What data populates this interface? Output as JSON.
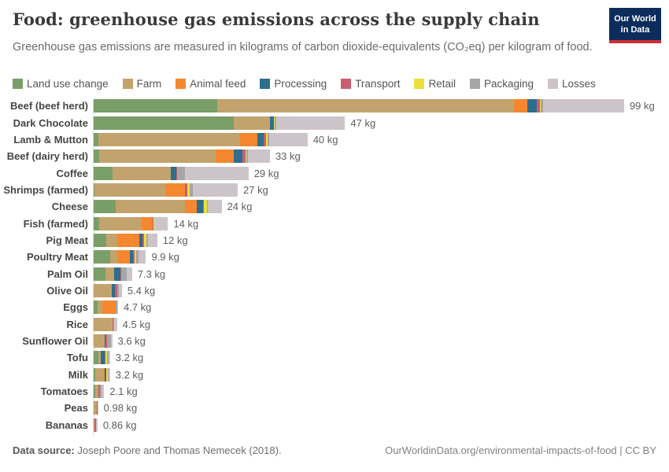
{
  "header": {
    "title": "Food: greenhouse gas emissions across the supply chain",
    "subtitle": "Greenhouse gas emissions are measured in kilograms of carbon dioxide-equivalents (CO₂eq) per kilogram of food.",
    "logo_line1": "Our World",
    "logo_line2": "in Data"
  },
  "chart_data": {
    "type": "bar",
    "orientation": "horizontal",
    "unit": "kg CO₂eq per kg of food",
    "xlim": [
      0,
      99
    ],
    "grid": false,
    "legend_position": "top",
    "stages": [
      {
        "name": "Land use change",
        "color": "#7a9e68"
      },
      {
        "name": "Farm",
        "color": "#c3a36c"
      },
      {
        "name": "Animal feed",
        "color": "#f5872e"
      },
      {
        "name": "Processing",
        "color": "#2e6e8d"
      },
      {
        "name": "Transport",
        "color": "#ca5d6e"
      },
      {
        "name": "Retail",
        "color": "#eae03c"
      },
      {
        "name": "Packaging",
        "color": "#a6a6a6"
      },
      {
        "name": "Losses",
        "color": "#cdc4c9"
      }
    ],
    "rows": [
      {
        "label": "Beef (beef herd)",
        "total": 99,
        "total_label": "99 kg",
        "values": [
          23.2,
          55.3,
          2.4,
          1.8,
          0.6,
          0.2,
          0.4,
          15.1
        ]
      },
      {
        "label": "Dark Chocolate",
        "total": 47,
        "total_label": "47 kg",
        "values": [
          26.3,
          6.7,
          0,
          0.7,
          0.1,
          0.05,
          0.4,
          12.75
        ]
      },
      {
        "label": "Lamb & Mutton",
        "total": 40,
        "total_label": "40 kg",
        "values": [
          1.0,
          26.5,
          3.2,
          1.1,
          0.5,
          0.2,
          0.3,
          7.2
        ]
      },
      {
        "label": "Beef (dairy herd)",
        "total": 33,
        "total_label": "33 kg",
        "values": [
          1.1,
          21.8,
          3.4,
          1.6,
          0.5,
          0.2,
          0.3,
          4.1
        ]
      },
      {
        "label": "Coffee",
        "total": 29,
        "total_label": "29 kg",
        "values": [
          3.7,
          10.8,
          0,
          1.1,
          0.1,
          0.05,
          1.4,
          11.85
        ]
      },
      {
        "label": "Shrimps (farmed)",
        "total": 27,
        "total_label": "27 kg",
        "values": [
          0.3,
          13.2,
          3.7,
          0,
          0.4,
          0.5,
          0.6,
          8.3
        ]
      },
      {
        "label": "Cheese",
        "total": 24,
        "total_label": "24 kg",
        "values": [
          4.3,
          12.9,
          2.2,
          1.2,
          0.1,
          0.5,
          0.2,
          2.6
        ]
      },
      {
        "label": "Fish (farmed)",
        "total": 14,
        "total_label": "14 kg",
        "values": [
          1.1,
          8.0,
          2.0,
          0.05,
          0.2,
          0.1,
          0.05,
          2.5
        ]
      },
      {
        "label": "Pig Meat",
        "total": 12,
        "total_label": "12 kg",
        "values": [
          2.5,
          2.1,
          4.1,
          0.6,
          0.3,
          0.4,
          0.3,
          1.7
        ]
      },
      {
        "label": "Poultry Meat",
        "total": 9.9,
        "total_label": "9.9 kg",
        "values": [
          3.2,
          1.3,
          2.4,
          0.6,
          0.3,
          0.3,
          0.4,
          1.4
        ]
      },
      {
        "label": "Palm Oil",
        "total": 7.3,
        "total_label": "7.3 kg",
        "values": [
          2.4,
          1.5,
          0,
          1.2,
          0.2,
          0,
          1.0,
          1.0
        ]
      },
      {
        "label": "Olive Oil",
        "total": 5.4,
        "total_label": "5.4 kg",
        "values": [
          0.2,
          3.3,
          0,
          0.6,
          0.45,
          0.05,
          0.3,
          0.5
        ]
      },
      {
        "label": "Eggs",
        "total": 4.7,
        "total_label": "4.7 kg",
        "values": [
          0.9,
          0.8,
          2.5,
          0,
          0.1,
          0,
          0.2,
          0.2
        ]
      },
      {
        "label": "Rice",
        "total": 4.5,
        "total_label": "4.5 kg",
        "values": [
          0,
          3.6,
          0,
          0.1,
          0.1,
          0,
          0.1,
          0.6
        ]
      },
      {
        "label": "Sunflower Oil",
        "total": 3.6,
        "total_label": "3.6 kg",
        "values": [
          0.1,
          2.1,
          0,
          0.2,
          0.2,
          0,
          0.8,
          0.2
        ]
      },
      {
        "label": "Tofu",
        "total": 3.2,
        "total_label": "3.2 kg",
        "values": [
          1.0,
          0.4,
          0,
          0.8,
          0.2,
          0.3,
          0.2,
          0.3
        ]
      },
      {
        "label": "Milk",
        "total": 3.2,
        "total_label": "3.2 kg",
        "values": [
          0.5,
          1.5,
          0.25,
          0.2,
          0.1,
          0.25,
          0.1,
          0.3
        ]
      },
      {
        "label": "Tomatoes",
        "total": 2.1,
        "total_label": "2.1 kg",
        "values": [
          0.4,
          0.7,
          0,
          0,
          0.2,
          0,
          0.3,
          0.5
        ]
      },
      {
        "label": "Peas",
        "total": 0.98,
        "total_label": "0.98 kg",
        "values": [
          0,
          0.72,
          0,
          0,
          0.1,
          0.02,
          0.04,
          0.1
        ]
      },
      {
        "label": "Bananas",
        "total": 0.86,
        "total_label": "0.86 kg",
        "values": [
          0,
          0.27,
          0,
          0,
          0.3,
          0.02,
          0.07,
          0.2
        ]
      }
    ]
  },
  "footer": {
    "source_label": "Data source:",
    "source_text": "Joseph Poore and Thomas Nemecek (2018).",
    "link": "OurWorldinData.org/environmental-impacts-of-food | CC BY"
  }
}
